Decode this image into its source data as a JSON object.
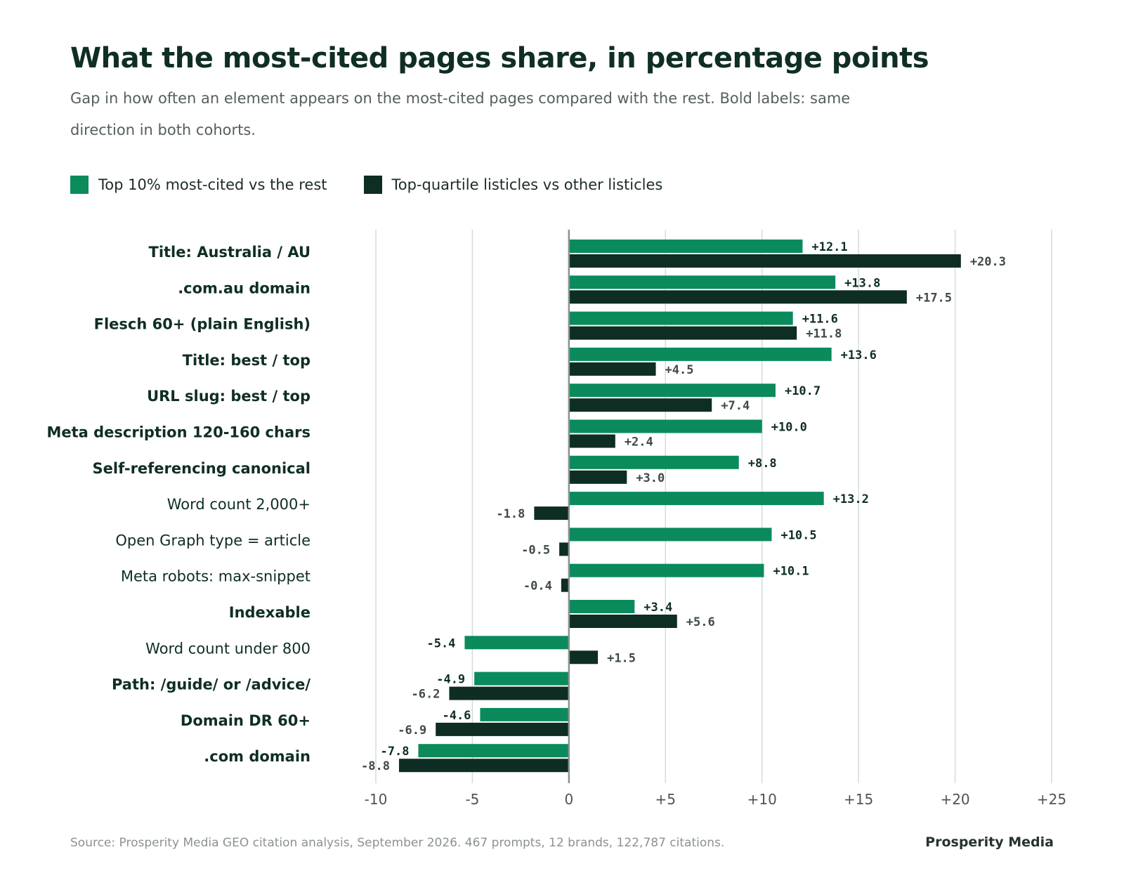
{
  "header": {
    "title": "What the most-cited pages share, in percentage points",
    "subtitle": "Gap in how often an element appears on the most-cited pages compared with the rest. Bold labels: same direction in both cohorts."
  },
  "legend": {
    "items": [
      {
        "label": "Top 10% most-cited vs the rest",
        "color": "#0b8a5c"
      },
      {
        "label": "Top-quartile listicles vs other listicles",
        "color": "#0e2d23"
      }
    ]
  },
  "chart_data": {
    "type": "bar",
    "orientation": "horizontal",
    "categories": [
      "Title: Australia / AU",
      ".com.au domain",
      "Flesch 60+ (plain English)",
      "Title: best / top",
      "URL slug: best / top",
      "Meta description 120-160 chars",
      "Self-referencing canonical",
      "Word count 2,000+",
      "Open Graph type = article",
      "Meta robots: max-snippet",
      "Indexable",
      "Word count under 800",
      "Path: /guide/ or /advice/",
      "Domain DR 60+",
      ".com domain"
    ],
    "bold_categories": [
      true,
      true,
      true,
      true,
      true,
      true,
      true,
      false,
      false,
      false,
      true,
      false,
      true,
      true,
      true
    ],
    "series": [
      {
        "name": "Top 10% most-cited vs the rest",
        "color": "#0b8a5c",
        "values": [
          12.1,
          13.8,
          11.6,
          13.6,
          10.7,
          10.0,
          8.8,
          13.2,
          10.5,
          10.1,
          3.4,
          -5.4,
          -4.9,
          -4.6,
          -7.8
        ],
        "labels": [
          "+12.1",
          "+13.8",
          "+11.6",
          "+13.6",
          "+10.7",
          "+10.0",
          "+8.8",
          "+13.2",
          "+10.5",
          "+10.1",
          "+3.4",
          "-5.4",
          "-4.9",
          "-4.6",
          "-7.8"
        ]
      },
      {
        "name": "Top-quartile listicles vs other listicles",
        "color": "#0e2d23",
        "values": [
          20.3,
          17.5,
          11.8,
          4.5,
          7.4,
          2.4,
          3.0,
          -1.8,
          -0.5,
          -0.4,
          5.6,
          1.5,
          -6.2,
          -6.9,
          -8.8
        ],
        "labels": [
          "+20.3",
          "+17.5",
          "+11.8",
          "+4.5",
          "+7.4",
          "+2.4",
          "+3.0",
          "-1.8",
          "-0.5",
          "-0.4",
          "+5.6",
          "+1.5",
          "-6.2",
          "-6.9",
          "-8.8"
        ]
      }
    ],
    "xlim": [
      -10,
      25
    ],
    "xticks": [
      -10,
      -5,
      0,
      5,
      10,
      15,
      20,
      25
    ],
    "xtick_labels": [
      "-10",
      "-5",
      "0",
      "+5",
      "+10",
      "+15",
      "+20",
      "+25"
    ],
    "grid": true,
    "legend_position": "top-left"
  },
  "footer": {
    "source": "Source: Prosperity Media GEO citation analysis, September 2026. 467 prompts, 12 brands, 122,787 citations.",
    "brand": "Prosperity Media"
  }
}
